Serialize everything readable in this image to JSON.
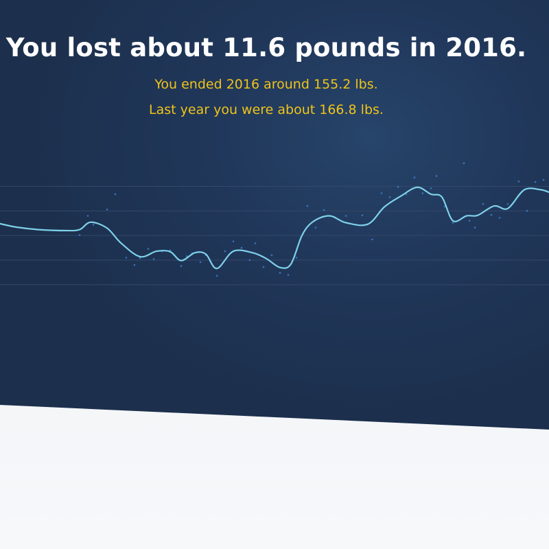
{
  "summary": {
    "headline": "You lost about 11.6 pounds in 2016.",
    "ended_line": "You ended 2016 around 155.2 lbs.",
    "last_year_line": "Last year you were about 166.8 lbs."
  },
  "colors": {
    "background": "#1f3557",
    "headline": "#ffffff",
    "subtitle": "#f0c419",
    "line": "#7fd1ea",
    "points": "#3d7fd0",
    "grid": "#34496a"
  },
  "chart_data": {
    "type": "line",
    "title": "",
    "xlabel": "",
    "ylabel": "",
    "grid": true,
    "xlim": [
      0,
      100
    ],
    "ylim": [
      145,
      175
    ],
    "gridlines": [
      152,
      157,
      162,
      167,
      172
    ],
    "series": [
      {
        "values": [
          [
            0,
            164.4
          ],
          [
            3,
            163.7
          ],
          [
            7,
            163.2
          ],
          [
            12,
            163.0
          ],
          [
            14.5,
            163.2
          ],
          [
            16.5,
            164.7
          ],
          [
            19.5,
            163.5
          ],
          [
            22,
            160.5
          ],
          [
            25.5,
            157.7
          ],
          [
            28.5,
            158.8
          ],
          [
            31,
            158.7
          ],
          [
            33,
            156.9
          ],
          [
            35.5,
            158.5
          ],
          [
            37.5,
            158.2
          ],
          [
            39.5,
            155.3
          ],
          [
            42.5,
            158.8
          ],
          [
            46,
            158.5
          ],
          [
            48.5,
            157.3
          ],
          [
            51,
            155.5
          ],
          [
            53,
            156.2
          ],
          [
            55,
            162.0
          ],
          [
            57,
            164.8
          ],
          [
            60,
            166.0
          ],
          [
            63,
            164.6
          ],
          [
            67,
            164.3
          ],
          [
            70,
            167.8
          ],
          [
            73,
            170.0
          ],
          [
            76,
            171.8
          ],
          [
            78.5,
            170.4
          ],
          [
            80.5,
            169.8
          ],
          [
            82.5,
            165.0
          ],
          [
            85,
            166.0
          ],
          [
            87,
            166.1
          ],
          [
            90,
            168.0
          ],
          [
            92.5,
            167.5
          ],
          [
            95.5,
            171.3
          ],
          [
            98.5,
            171.3
          ],
          [
            100,
            170.8
          ]
        ]
      }
    ],
    "points": [
      [
        14.5,
        162.1
      ],
      [
        16,
        166.0
      ],
      [
        17,
        164.2
      ],
      [
        19.5,
        167.3
      ],
      [
        21,
        170.4
      ],
      [
        23,
        157.5
      ],
      [
        24.5,
        156.0
      ],
      [
        25.5,
        157.4
      ],
      [
        27,
        159.3
      ],
      [
        28,
        157.2
      ],
      [
        29.5,
        158.8
      ],
      [
        31,
        159.0
      ],
      [
        33,
        155.8
      ],
      [
        34,
        157.8
      ],
      [
        35,
        158.4
      ],
      [
        36.5,
        156.6
      ],
      [
        37.5,
        158.0
      ],
      [
        39.5,
        153.8
      ],
      [
        41,
        158.8
      ],
      [
        42.5,
        160.8
      ],
      [
        44,
        159.5
      ],
      [
        45.5,
        157.0
      ],
      [
        46.5,
        160.4
      ],
      [
        48,
        155.6
      ],
      [
        49.5,
        158.0
      ],
      [
        51,
        154.4
      ],
      [
        52.5,
        154.0
      ],
      [
        54,
        157.5
      ],
      [
        56,
        168.0
      ],
      [
        57.5,
        163.6
      ],
      [
        59,
        167.2
      ],
      [
        61,
        165.6
      ],
      [
        63,
        166.0
      ],
      [
        66,
        166.1
      ],
      [
        67.8,
        161.2
      ],
      [
        69.5,
        170.6
      ],
      [
        71,
        169.8
      ],
      [
        72.5,
        171.9
      ],
      [
        74,
        170.4
      ],
      [
        75.5,
        173.8
      ],
      [
        77,
        170.6
      ],
      [
        78.5,
        171.6
      ],
      [
        79.5,
        174.1
      ],
      [
        81,
        167.9
      ],
      [
        82.5,
        164.6
      ],
      [
        84.5,
        176.7
      ],
      [
        85.5,
        165.0
      ],
      [
        86.5,
        163.6
      ],
      [
        88,
        168.4
      ],
      [
        89.5,
        166.2
      ],
      [
        91,
        165.6
      ],
      [
        92.5,
        168.4
      ],
      [
        94.5,
        173.0
      ],
      [
        96,
        167.0
      ],
      [
        97.5,
        172.9
      ],
      [
        99,
        173.3
      ]
    ]
  }
}
